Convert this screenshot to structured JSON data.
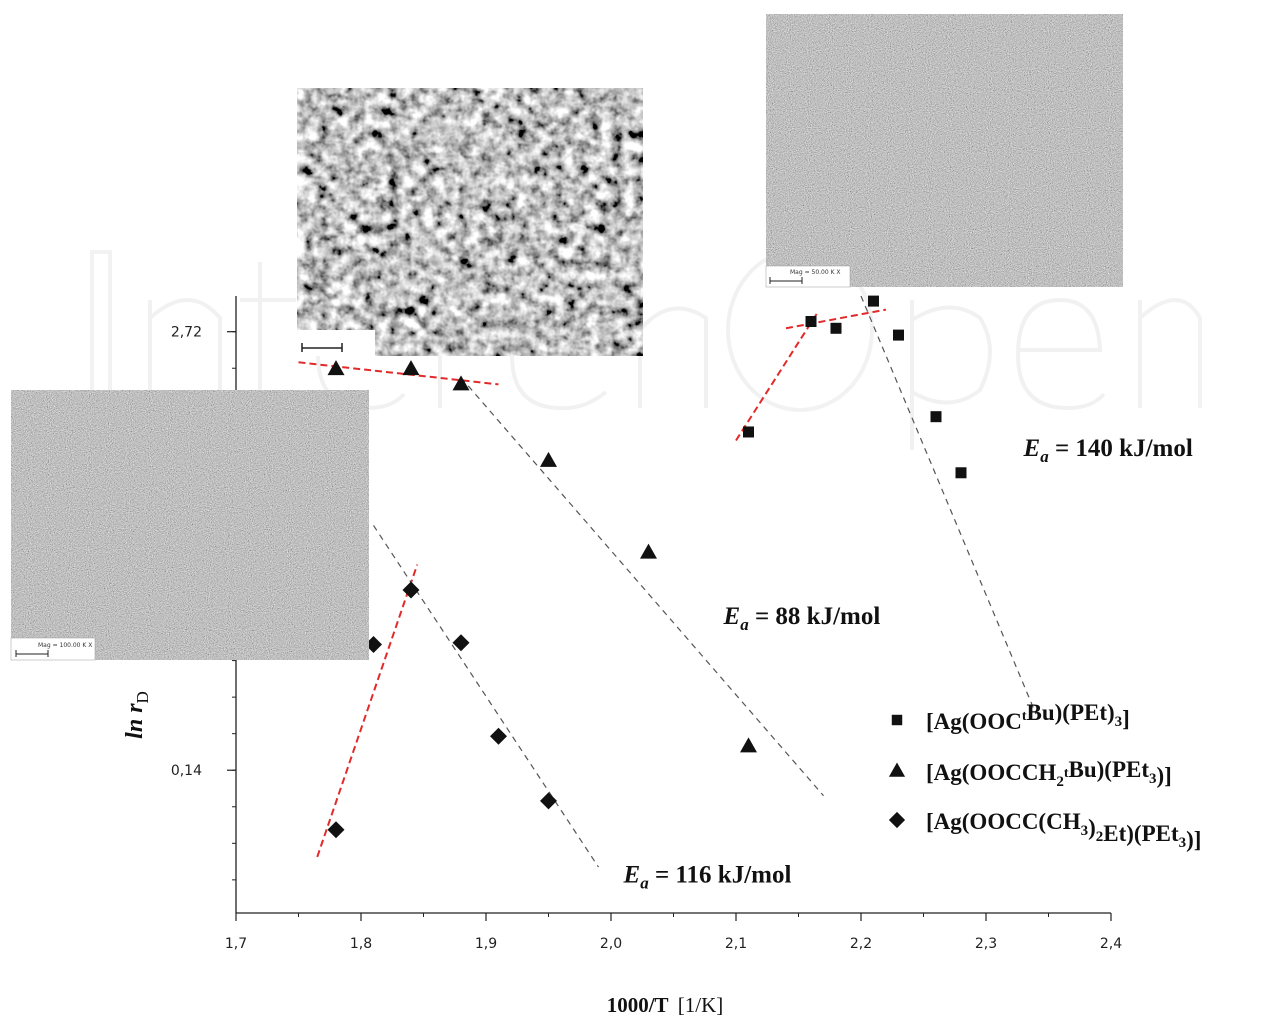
{
  "chart_data": {
    "type": "scatter",
    "xlabel": "1000/T",
    "xlabel_unit": "[1/K]",
    "ylabel": "ln r",
    "ylabel_sub": "D",
    "xlim": [
      1.7,
      2.4
    ],
    "ylim": [
      -0.7,
      2.93
    ],
    "x_ticks": [
      {
        "value": 1.7,
        "label": "1,7"
      },
      {
        "value": 1.8,
        "label": "1,8"
      },
      {
        "value": 1.9,
        "label": "1,9"
      },
      {
        "value": 2.0,
        "label": "2,0"
      },
      {
        "value": 2.1,
        "label": "2,1"
      },
      {
        "value": 2.2,
        "label": "2,2"
      },
      {
        "value": 2.3,
        "label": "2,3"
      },
      {
        "value": 2.4,
        "label": "2,4"
      }
    ],
    "y_ticks": [
      {
        "value": 0.14,
        "label": "0,14"
      },
      {
        "value": 2.72,
        "label": "2,72"
      }
    ],
    "grid": false,
    "legend_position": "right",
    "series": [
      {
        "name": "[Ag(OOC^tBu)(PEt)3]",
        "marker": "square",
        "x": [
          2.11,
          2.16,
          2.18,
          2.21,
          2.23,
          2.26,
          2.28
        ],
        "y": [
          2.13,
          2.78,
          2.74,
          2.9,
          2.7,
          2.22,
          1.89
        ]
      },
      {
        "name": "[Ag(OOCCH2^tBu)(PEt3)]",
        "marker": "triangle",
        "x": [
          1.78,
          1.84,
          1.88,
          1.95,
          2.03,
          2.11
        ],
        "y": [
          2.5,
          2.5,
          2.41,
          1.96,
          1.42,
          0.28
        ]
      },
      {
        "name": "[Ag(OOCC(CH3)2Et)(PEt3)]",
        "marker": "diamond",
        "x": [
          1.78,
          1.81,
          1.84,
          1.88,
          1.91,
          1.95
        ],
        "y": [
          -0.21,
          0.88,
          1.2,
          0.89,
          0.34,
          -0.04
        ]
      }
    ],
    "annotations": [
      {
        "label": "E",
        "sub": "a",
        "text": " = 140 kJ/mol",
        "x": 2.33,
        "y": 1.99
      },
      {
        "label": "E",
        "sub": "a",
        "text": " = 88 kJ/mol",
        "x": 2.09,
        "y": 1.0
      },
      {
        "label": "E",
        "sub": "a",
        "text": " = 116 kJ/mol",
        "x": 2.01,
        "y": -0.52
      }
    ],
    "fit_lines": [
      {
        "color": "#e32a2a",
        "from": [
          2.1,
          2.08
        ],
        "to": [
          2.165,
          2.83
        ]
      },
      {
        "color": "#e32a2a",
        "from": [
          2.14,
          2.74
        ],
        "to": [
          2.22,
          2.85
        ]
      },
      {
        "color": "#555555",
        "from": [
          2.2,
          2.93
        ],
        "to": [
          2.34,
          0.47
        ]
      },
      {
        "color": "#e32a2a",
        "from": [
          1.75,
          2.54
        ],
        "to": [
          1.91,
          2.41
        ]
      },
      {
        "color": "#555555",
        "from": [
          1.88,
          2.45
        ],
        "to": [
          2.17,
          -0.01
        ]
      },
      {
        "color": "#e32a2a",
        "from": [
          1.765,
          -0.37
        ],
        "to": [
          1.845,
          1.35
        ]
      },
      {
        "color": "#555555",
        "from": [
          1.81,
          1.58
        ],
        "to": [
          1.99,
          -0.43
        ]
      }
    ]
  },
  "insets": [
    {
      "name": "SEM micrograph (coarse grains)",
      "scale_text": "",
      "texture": "coarse"
    },
    {
      "name": "SEM micrograph (fine grains, top right)",
      "scale_text": "Mag = 50.00 K X",
      "texture": "fine"
    },
    {
      "name": "SEM micrograph (fine grains, left)",
      "scale_text": "Mag = 100.00 K X",
      "texture": "fine"
    }
  ]
}
